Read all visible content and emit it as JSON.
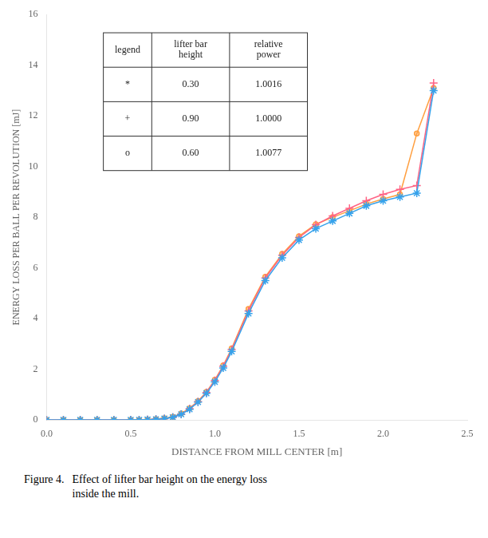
{
  "chart_data": {
    "type": "line",
    "title": "",
    "x_label": "DISTANCE FROM MILL CENTER [m]",
    "y_label": "ENERGY LOSS PER BALL PER REVOLUTION [mJ]",
    "xlim": [
      0,
      2.5
    ],
    "ylim": [
      0,
      16
    ],
    "xticks": [
      {
        "value": 0,
        "label": "0.0"
      },
      0.5,
      {
        "value": 1.0,
        "label": "1.0"
      },
      {
        "value": 1.5,
        "label": "1.5"
      },
      {
        "value": 2.0,
        "label": "2.0"
      },
      {
        "value": 2.5,
        "label": "2.5"
      }
    ],
    "yticks": [
      0,
      2,
      4,
      6,
      8,
      10,
      12,
      14,
      16
    ],
    "grid": false,
    "caption_label": "Figure 4.",
    "caption": "Effect of lifter bar height on the energy loss\ninside the mill.",
    "table": {
      "header": [
        "legend",
        "lifter bar\nheight",
        "relative\npower"
      ],
      "rows": [
        [
          "*",
          "0.30",
          "1.0016"
        ],
        [
          "+",
          "0.90",
          "1.0000"
        ],
        [
          "o",
          "0.60",
          "1.0077"
        ]
      ]
    },
    "series": [
      {
        "name": "*",
        "marker": "star",
        "x": [
          0.0,
          0.1,
          0.2,
          0.3,
          0.4,
          0.5,
          0.55,
          0.6,
          0.65,
          0.7,
          0.75,
          0.8,
          0.85,
          0.9,
          0.95,
          1.0,
          1.05,
          1.1,
          1.2,
          1.3,
          1.4,
          1.5,
          1.6,
          1.7,
          1.8,
          1.9,
          2.0,
          2.1,
          2.2,
          2.3
        ],
        "values": [
          0.0,
          0.0,
          0.0,
          0.0,
          0.0,
          0.0,
          0.0,
          0.01,
          0.02,
          0.05,
          0.1,
          0.22,
          0.42,
          0.7,
          1.05,
          1.5,
          2.05,
          2.7,
          4.2,
          5.5,
          6.4,
          7.1,
          7.55,
          7.85,
          8.15,
          8.45,
          8.65,
          8.8,
          8.95,
          13.0
        ]
      },
      {
        "name": "+",
        "marker": "cross",
        "x": [
          0.0,
          0.1,
          0.2,
          0.3,
          0.4,
          0.5,
          0.55,
          0.6,
          0.65,
          0.7,
          0.75,
          0.8,
          0.85,
          0.9,
          0.95,
          1.0,
          1.05,
          1.1,
          1.2,
          1.3,
          1.4,
          1.5,
          1.6,
          1.7,
          1.8,
          1.9,
          2.0,
          2.1,
          2.2,
          2.3
        ],
        "values": [
          0.0,
          0.0,
          0.0,
          0.0,
          0.0,
          0.0,
          0.0,
          0.01,
          0.02,
          0.05,
          0.1,
          0.22,
          0.44,
          0.72,
          1.08,
          1.55,
          2.12,
          2.78,
          4.3,
          5.6,
          6.5,
          7.2,
          7.7,
          8.05,
          8.35,
          8.65,
          8.9,
          9.1,
          9.25,
          13.3
        ]
      },
      {
        "name": "o",
        "marker": "circle",
        "x": [
          0.0,
          0.1,
          0.2,
          0.3,
          0.4,
          0.5,
          0.55,
          0.6,
          0.65,
          0.7,
          0.75,
          0.8,
          0.85,
          0.9,
          0.95,
          1.0,
          1.05,
          1.1,
          1.2,
          1.3,
          1.4,
          1.5,
          1.6,
          1.7,
          1.8,
          1.9,
          2.0,
          2.1,
          2.2,
          2.3
        ],
        "values": [
          0.0,
          0.0,
          0.0,
          0.0,
          0.0,
          0.0,
          0.0,
          0.01,
          0.03,
          0.06,
          0.12,
          0.25,
          0.46,
          0.74,
          1.1,
          1.58,
          2.15,
          2.82,
          4.38,
          5.65,
          6.55,
          7.25,
          7.72,
          8.0,
          8.25,
          8.52,
          8.72,
          8.9,
          11.3,
          13.1
        ]
      }
    ]
  }
}
